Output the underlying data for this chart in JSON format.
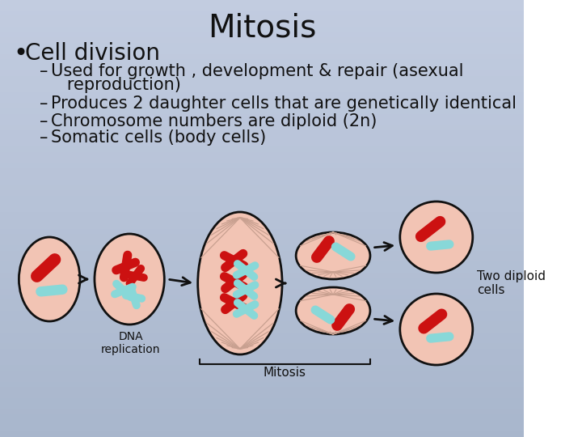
{
  "title": "Mitosis",
  "title_fontsize": 28,
  "bullet_main": "Cell division",
  "bullet_main_fontsize": 20,
  "sub_bullets": [
    "Used for growth , development & repair (asexual",
    "   reproduction)",
    "Produces 2 daughter cells that are genetically identical",
    "Chromosome numbers are diploid (2n)",
    "Somatic cells (body cells)"
  ],
  "sub_bullet_flags": [
    true,
    false,
    true,
    true,
    true
  ],
  "sub_bullet_fontsize": 15,
  "label_dna": "DNA\nreplication",
  "label_mitosis": "Mitosis",
  "label_two_diploid": "Two diploid\ncells",
  "bg_color": "#b0bdd6",
  "cell_fill": "#f2c4b4",
  "cell_outline": "#111111",
  "chrom_red": "#cc1111",
  "chrom_cyan": "#88d8d8",
  "text_color": "#111111",
  "arrow_color": "#111111",
  "spindle_color": "#c8a090"
}
